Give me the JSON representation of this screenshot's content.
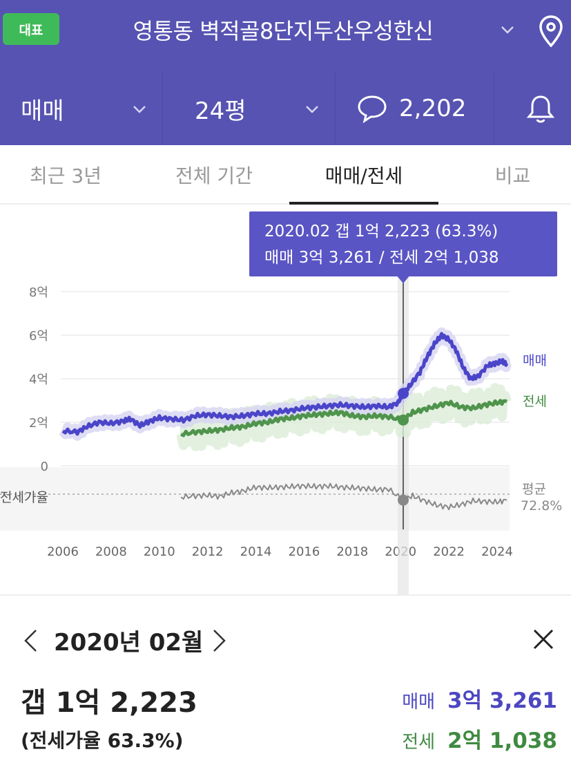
{
  "header": {
    "badge": "대표",
    "title": "영통동 벽적골8단지두산우성한신"
  },
  "filters": {
    "trade_type": "매매",
    "size": "24평",
    "comments": "2,202"
  },
  "tabs": [
    {
      "label": "최근 3년",
      "active": false
    },
    {
      "label": "전체 기간",
      "active": false
    },
    {
      "label": "매매/전세",
      "active": true
    },
    {
      "label": "비교",
      "active": false
    }
  ],
  "tooltip": {
    "line1": "2020.02  갭 1억 2,223 (63.3%)",
    "line2": "매매 3억 3,261 / 전세 2억 1,038"
  },
  "chart_labels": {
    "y_ticks": [
      "8억",
      "6억",
      "4억",
      "2억",
      "0"
    ],
    "ratio_label": "전세가율",
    "avg_label": "평균",
    "avg_value": "72.8%",
    "series_trade": "매매",
    "series_lease": "전세"
  },
  "chart_data": {
    "type": "line",
    "x_ticks": [
      "2006",
      "2008",
      "2010",
      "2012",
      "2014",
      "2016",
      "2018",
      "2020",
      "2022",
      "2024"
    ],
    "y_unit": "억",
    "ylim": [
      0,
      8
    ],
    "selected_x": "2020.02",
    "series": [
      {
        "name": "매매",
        "color": "#4a45c8",
        "points": [
          [
            2006.0,
            1.6
          ],
          [
            2006.6,
            1.55
          ],
          [
            2007.0,
            1.8
          ],
          [
            2007.5,
            2.0
          ],
          [
            2008.0,
            1.95
          ],
          [
            2008.5,
            2.05
          ],
          [
            2008.8,
            2.15
          ],
          [
            2009.2,
            1.85
          ],
          [
            2009.6,
            2.05
          ],
          [
            2010.0,
            2.2
          ],
          [
            2010.5,
            2.15
          ],
          [
            2011.0,
            2.1
          ],
          [
            2011.5,
            2.3
          ],
          [
            2012.0,
            2.35
          ],
          [
            2012.5,
            2.3
          ],
          [
            2013.0,
            2.25
          ],
          [
            2013.5,
            2.3
          ],
          [
            2014.0,
            2.4
          ],
          [
            2014.5,
            2.4
          ],
          [
            2015.0,
            2.5
          ],
          [
            2015.5,
            2.55
          ],
          [
            2016.0,
            2.65
          ],
          [
            2016.5,
            2.7
          ],
          [
            2017.0,
            2.75
          ],
          [
            2017.5,
            2.8
          ],
          [
            2018.0,
            2.75
          ],
          [
            2018.5,
            2.7
          ],
          [
            2019.0,
            2.75
          ],
          [
            2019.5,
            2.7
          ],
          [
            2019.9,
            2.9
          ],
          [
            2020.1,
            3.33
          ],
          [
            2020.4,
            3.7
          ],
          [
            2020.8,
            4.3
          ],
          [
            2021.1,
            5.0
          ],
          [
            2021.4,
            5.6
          ],
          [
            2021.7,
            6.0
          ],
          [
            2022.0,
            5.8
          ],
          [
            2022.3,
            5.3
          ],
          [
            2022.6,
            4.5
          ],
          [
            2022.9,
            4.0
          ],
          [
            2023.2,
            4.1
          ],
          [
            2023.6,
            4.6
          ],
          [
            2023.9,
            4.7
          ],
          [
            2024.2,
            4.8
          ],
          [
            2024.4,
            4.7
          ]
        ]
      },
      {
        "name": "전세",
        "color": "#4f944c",
        "points": [
          [
            2010.9,
            1.45
          ],
          [
            2011.5,
            1.55
          ],
          [
            2012.0,
            1.6
          ],
          [
            2012.5,
            1.65
          ],
          [
            2013.0,
            1.75
          ],
          [
            2013.5,
            1.8
          ],
          [
            2014.0,
            1.95
          ],
          [
            2014.5,
            2.0
          ],
          [
            2015.0,
            2.15
          ],
          [
            2015.5,
            2.2
          ],
          [
            2016.0,
            2.3
          ],
          [
            2016.5,
            2.35
          ],
          [
            2017.0,
            2.4
          ],
          [
            2017.5,
            2.45
          ],
          [
            2018.0,
            2.3
          ],
          [
            2018.5,
            2.25
          ],
          [
            2019.0,
            2.3
          ],
          [
            2019.5,
            2.25
          ],
          [
            2020.1,
            2.1
          ],
          [
            2020.5,
            2.45
          ],
          [
            2021.0,
            2.6
          ],
          [
            2021.5,
            2.75
          ],
          [
            2022.0,
            2.9
          ],
          [
            2022.5,
            2.7
          ],
          [
            2023.0,
            2.65
          ],
          [
            2023.5,
            2.8
          ],
          [
            2024.0,
            2.9
          ],
          [
            2024.4,
            2.95
          ]
        ]
      },
      {
        "name": "전세가율",
        "unit": "%",
        "color": "#888888",
        "avg": 72.8,
        "selected_value": 63.3,
        "points": [
          [
            2010.9,
            68
          ],
          [
            2011.5,
            70
          ],
          [
            2012.0,
            71
          ],
          [
            2012.5,
            69
          ],
          [
            2013.0,
            75
          ],
          [
            2013.5,
            78
          ],
          [
            2014.0,
            84
          ],
          [
            2014.5,
            83
          ],
          [
            2015.0,
            84
          ],
          [
            2015.5,
            85
          ],
          [
            2016.0,
            86
          ],
          [
            2016.5,
            85
          ],
          [
            2017.0,
            86
          ],
          [
            2017.5,
            84
          ],
          [
            2018.0,
            83
          ],
          [
            2018.5,
            82
          ],
          [
            2019.0,
            80
          ],
          [
            2019.5,
            81
          ],
          [
            2020.1,
            63.3
          ],
          [
            2020.5,
            70
          ],
          [
            2021.0,
            62
          ],
          [
            2021.5,
            55
          ],
          [
            2022.0,
            52
          ],
          [
            2022.5,
            56
          ],
          [
            2023.0,
            62
          ],
          [
            2023.5,
            61
          ],
          [
            2024.0,
            60
          ],
          [
            2024.4,
            63
          ]
        ]
      }
    ]
  },
  "detail": {
    "month": "2020년 02월",
    "gap": "갭 1억 2,223",
    "ratio": "(전세가율 63.3%)",
    "trade_label": "매매",
    "trade_value": "3억 3,261",
    "lease_label": "전세",
    "lease_value": "2억 1,038"
  }
}
